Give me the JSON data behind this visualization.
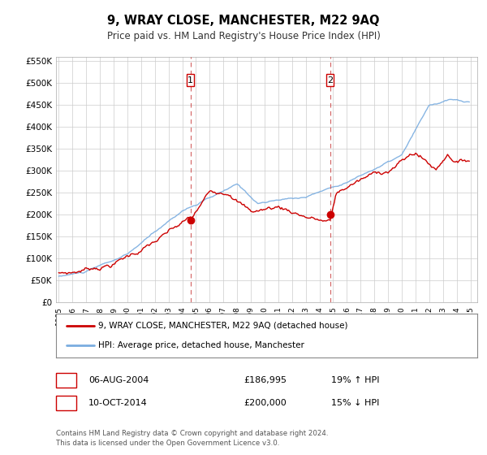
{
  "title": "9, WRAY CLOSE, MANCHESTER, M22 9AQ",
  "subtitle": "Price paid vs. HM Land Registry's House Price Index (HPI)",
  "bg_color": "#ffffff",
  "plot_bg_color": "#ffffff",
  "grid_color": "#cccccc",
  "red_color": "#cc0000",
  "blue_color": "#7aade0",
  "ylim": [
    0,
    560000
  ],
  "yticks": [
    0,
    50000,
    100000,
    150000,
    200000,
    250000,
    300000,
    350000,
    400000,
    450000,
    500000,
    550000
  ],
  "ytick_labels": [
    "£0",
    "£50K",
    "£100K",
    "£150K",
    "£200K",
    "£250K",
    "£300K",
    "£350K",
    "£400K",
    "£450K",
    "£500K",
    "£550K"
  ],
  "xmin": 1994.8,
  "xmax": 2025.5,
  "marker1_x": 2004.6,
  "marker1_y": 186995,
  "marker2_x": 2014.78,
  "marker2_y": 200000,
  "legend_line1": "9, WRAY CLOSE, MANCHESTER, M22 9AQ (detached house)",
  "legend_line2": "HPI: Average price, detached house, Manchester",
  "table_row1_num": "1",
  "table_row1_date": "06-AUG-2004",
  "table_row1_price": "£186,995",
  "table_row1_hpi": "19% ↑ HPI",
  "table_row2_num": "2",
  "table_row2_date": "10-OCT-2014",
  "table_row2_price": "£200,000",
  "table_row2_hpi": "15% ↓ HPI",
  "footer": "Contains HM Land Registry data © Crown copyright and database right 2024.\nThis data is licensed under the Open Government Licence v3.0."
}
